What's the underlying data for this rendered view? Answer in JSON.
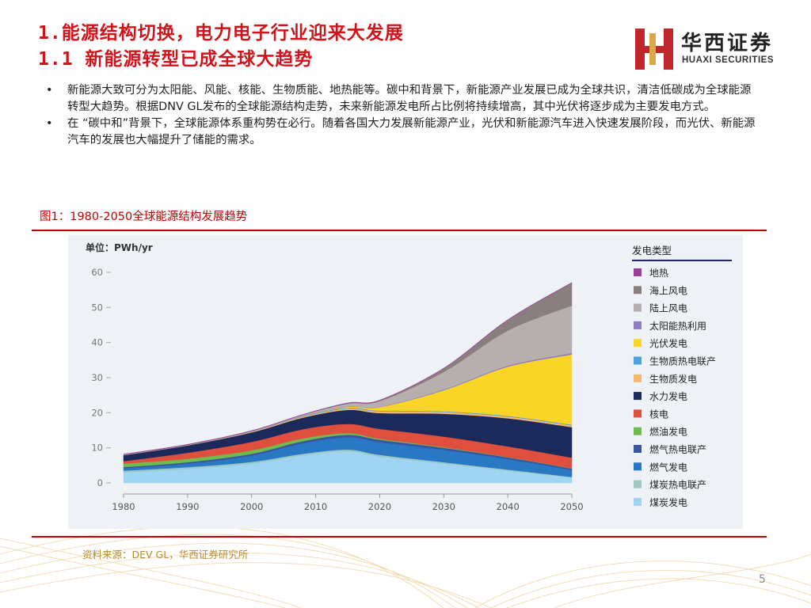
{
  "header": {
    "title_line1": "1.能源结构切换，电力电子行业迎来大发展",
    "title_line2": "1.1 新能源转型已成全球大趋势",
    "logo_cn": "华西证券",
    "logo_en": "HUAXI SECURITIES"
  },
  "bullets": [
    {
      "marker": "•",
      "text": "新能源大致可分为太阳能、风能、核能、生物质能、地热能等。碳中和背景下，新能源产业发展已成为全球共识，清洁低碳成为全球能源转型大趋势。根据DNV GL发布的全球能源结构走势，未来新能源发电所占比例将持续增高，其中光伏将逐步成为主要发电方式。"
    },
    {
      "marker": "•",
      "text": "在 “碳中和”背景下，全球能源体系重构势在必行。随着各国大力发展新能源产业，光伏和新能源汽车进入快速发展阶段，而光伏、新能源汽车的发展也大幅提升了储能的需求。"
    }
  ],
  "figure_caption": "图1：1980-2050全球能源结构发展趋势",
  "source": "资料来源：DEV GL，华西证券研究所",
  "page_number": "5",
  "chart_data": {
    "type": "area",
    "stacked": true,
    "unit_label": "单位：PWh/yr",
    "legend_title": "发电类型",
    "legend_position": "right",
    "x": [
      1980,
      1990,
      2000,
      2008,
      2015,
      2020,
      2030,
      2040,
      2050
    ],
    "x_ticks": [
      1980,
      1990,
      2000,
      2010,
      2020,
      2030,
      2040,
      2050
    ],
    "y_ticks": [
      0,
      10,
      20,
      30,
      40,
      50,
      60
    ],
    "ylim": [
      0,
      60
    ],
    "series": [
      {
        "name": "煤炭发电",
        "color": "#9fd5f2",
        "values": [
          3.0,
          4.0,
          5.5,
          7.8,
          9.0,
          7.5,
          5.5,
          3.5,
          1.5
        ]
      },
      {
        "name": "煤炭热电联产",
        "color": "#9bc8c3",
        "values": [
          0.5,
          0.5,
          0.5,
          0.5,
          0.5,
          0.5,
          0.4,
          0.3,
          0.2
        ]
      },
      {
        "name": "燃气发电",
        "color": "#2878c3",
        "values": [
          0.7,
          1.0,
          1.8,
          3.0,
          3.5,
          3.6,
          3.5,
          3.0,
          2.0
        ]
      },
      {
        "name": "燃气热电联产",
        "color": "#3a54a4",
        "values": [
          0.3,
          0.4,
          0.5,
          0.6,
          0.7,
          0.7,
          0.6,
          0.5,
          0.4
        ]
      },
      {
        "name": "燃油发电",
        "color": "#6fbb4e",
        "values": [
          1.0,
          1.0,
          1.0,
          0.8,
          0.5,
          0.3,
          0.2,
          0.1,
          0.1
        ]
      },
      {
        "name": "核电",
        "color": "#e04e3d",
        "values": [
          0.7,
          1.7,
          2.4,
          2.6,
          2.6,
          2.8,
          3.0,
          3.0,
          3.0
        ]
      },
      {
        "name": "水力发电",
        "color": "#1b2a5a",
        "values": [
          1.7,
          2.1,
          2.7,
          3.3,
          4.0,
          4.5,
          6.5,
          8.0,
          8.7
        ]
      },
      {
        "name": "生物质发电",
        "color": "#f7b86e",
        "values": [
          0.1,
          0.1,
          0.2,
          0.3,
          0.4,
          0.5,
          0.5,
          0.5,
          0.5
        ]
      },
      {
        "name": "生物质热电联产",
        "color": "#4aa3df",
        "values": [
          0.1,
          0.1,
          0.1,
          0.2,
          0.2,
          0.2,
          0.2,
          0.2,
          0.2
        ]
      },
      {
        "name": "光伏发电",
        "color": "#f9d526",
        "values": [
          0.0,
          0.0,
          0.0,
          0.0,
          0.3,
          1.0,
          6.0,
          14.0,
          20.0
        ]
      },
      {
        "name": "太阳能热利用",
        "color": "#8e7cc3",
        "values": [
          0.0,
          0.0,
          0.0,
          0.0,
          0.1,
          0.1,
          0.2,
          0.3,
          0.4
        ]
      },
      {
        "name": "陆上风电",
        "color": "#b7aeae",
        "values": [
          0.0,
          0.0,
          0.1,
          0.3,
          0.8,
          1.6,
          5.0,
          10.0,
          13.5
        ]
      },
      {
        "name": "海上风电",
        "color": "#8a7f7f",
        "values": [
          0.0,
          0.0,
          0.0,
          0.0,
          0.1,
          0.2,
          1.0,
          3.0,
          6.5
        ]
      },
      {
        "name": "地热",
        "color": "#9b3d9b",
        "values": [
          0.1,
          0.1,
          0.1,
          0.1,
          0.1,
          0.1,
          0.1,
          0.1,
          0.1
        ]
      }
    ],
    "legend_order": [
      "地热",
      "海上风电",
      "陆上风电",
      "太阳能热利用",
      "光伏发电",
      "生物质热电联产",
      "生物质发电",
      "水力发电",
      "核电",
      "燃油发电",
      "燃气热电联产",
      "燃气发电",
      "煤炭热电联产",
      "煤炭发电"
    ]
  }
}
